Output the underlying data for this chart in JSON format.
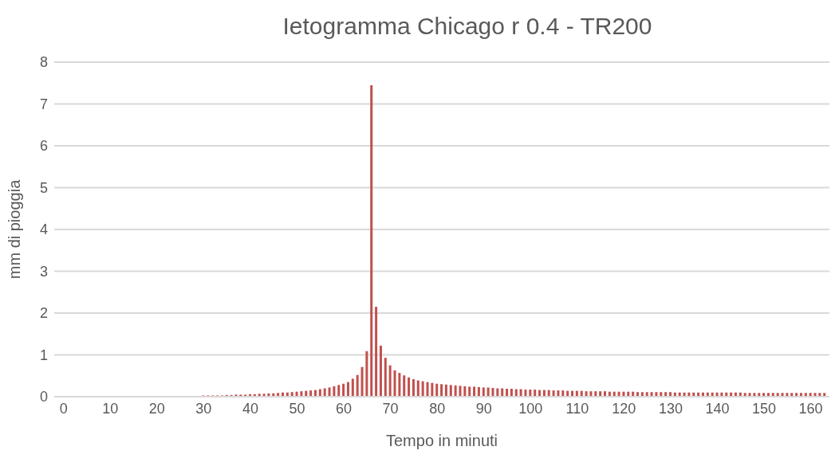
{
  "chart_data": {
    "type": "bar",
    "title": "Ietogramma Chicago r 0.4 - TR200",
    "xlabel": "Tempo in minuti",
    "ylabel": "mm di pioggia",
    "color": "#c0504d",
    "x": [
      30,
      31,
      32,
      33,
      34,
      35,
      36,
      37,
      38,
      39,
      40,
      41,
      42,
      43,
      44,
      45,
      46,
      47,
      48,
      49,
      50,
      51,
      52,
      53,
      54,
      55,
      56,
      57,
      58,
      59,
      60,
      61,
      62,
      63,
      64,
      65,
      66,
      67,
      68,
      69,
      70,
      71,
      72,
      73,
      74,
      75,
      76,
      77,
      78,
      79,
      80,
      81,
      82,
      83,
      84,
      85,
      86,
      87,
      88,
      89,
      90,
      91,
      92,
      93,
      94,
      95,
      96,
      97,
      98,
      99,
      100,
      101,
      102,
      103,
      104,
      105,
      106,
      107,
      108,
      109,
      110,
      111,
      112,
      113,
      114,
      115,
      116,
      117,
      118,
      119,
      120,
      121,
      122,
      123,
      124,
      125,
      126,
      127,
      128,
      129,
      130,
      131,
      132,
      133,
      134,
      135,
      136,
      137,
      138,
      139,
      140,
      141,
      142,
      143,
      144,
      145,
      146,
      147,
      148,
      149,
      150,
      151,
      152,
      153,
      154,
      155,
      156,
      157,
      158,
      159,
      160,
      161,
      162,
      163
    ],
    "values": [
      0.03,
      0.03,
      0.03,
      0.03,
      0.03,
      0.04,
      0.04,
      0.05,
      0.05,
      0.05,
      0.06,
      0.06,
      0.07,
      0.07,
      0.08,
      0.08,
      0.09,
      0.1,
      0.1,
      0.11,
      0.12,
      0.13,
      0.14,
      0.15,
      0.16,
      0.18,
      0.2,
      0.22,
      0.25,
      0.28,
      0.31,
      0.35,
      0.43,
      0.52,
      0.71,
      1.09,
      7.45,
      2.15,
      1.22,
      0.93,
      0.75,
      0.63,
      0.57,
      0.51,
      0.46,
      0.42,
      0.39,
      0.37,
      0.35,
      0.33,
      0.31,
      0.3,
      0.29,
      0.28,
      0.27,
      0.26,
      0.25,
      0.24,
      0.24,
      0.23,
      0.22,
      0.22,
      0.21,
      0.2,
      0.2,
      0.19,
      0.19,
      0.18,
      0.18,
      0.17,
      0.17,
      0.17,
      0.16,
      0.16,
      0.16,
      0.15,
      0.15,
      0.15,
      0.14,
      0.14,
      0.14,
      0.14,
      0.13,
      0.13,
      0.13,
      0.13,
      0.13,
      0.12,
      0.12,
      0.12,
      0.12,
      0.12,
      0.12,
      0.11,
      0.11,
      0.11,
      0.11,
      0.11,
      0.11,
      0.11,
      0.11,
      0.1,
      0.1,
      0.1,
      0.1,
      0.1,
      0.1,
      0.1,
      0.1,
      0.1,
      0.1,
      0.1,
      0.1,
      0.1,
      0.1,
      0.1,
      0.09,
      0.09,
      0.09,
      0.09,
      0.09,
      0.09,
      0.09,
      0.09,
      0.09,
      0.09,
      0.09,
      0.09,
      0.09,
      0.09,
      0.09,
      0.09,
      0.09,
      0.09
    ],
    "xlim": [
      -2,
      164
    ],
    "xticks": [
      0,
      10,
      20,
      30,
      40,
      50,
      60,
      70,
      80,
      90,
      100,
      110,
      120,
      130,
      140,
      150,
      160
    ],
    "ylim": [
      0,
      8
    ],
    "yticks": [
      0,
      1,
      2,
      3,
      4,
      5,
      6,
      7,
      8
    ],
    "grid": "y"
  }
}
